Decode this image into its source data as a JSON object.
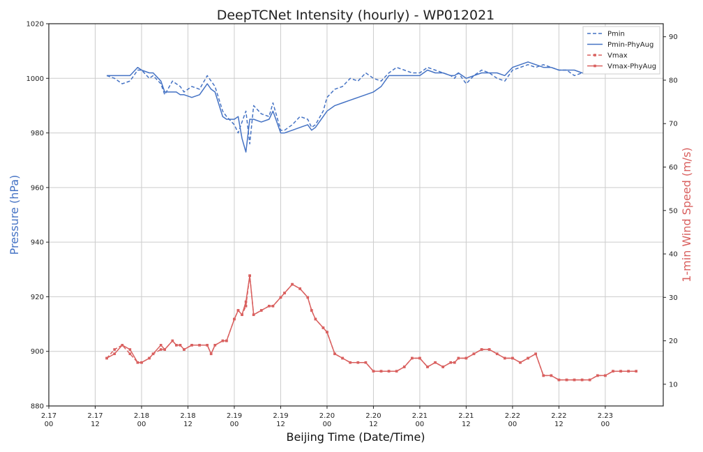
{
  "chart_data": {
    "type": "line",
    "title": "DeepTCNet Intensity (hourly) - WP012021",
    "xlabel": "Beijing Time (Date/Time)",
    "ylabel_left": "Pressure (hPa)",
    "ylabel_right": "1-min Wind Speed (m/s)",
    "colors": {
      "pressure": "#4472c4",
      "wind": "#d9605f"
    },
    "grid": true,
    "legend_position": "top-right",
    "ylim_left": [
      880,
      1020
    ],
    "yticks_left": [
      880,
      900,
      920,
      940,
      960,
      980,
      1000,
      1020
    ],
    "ylim_right": [
      5,
      93
    ],
    "yticks_right": [
      10,
      20,
      30,
      40,
      50,
      60,
      70,
      80,
      90
    ],
    "xlim": [
      0,
      159
    ],
    "xticks": [
      {
        "x": 0,
        "line1": "2.17",
        "line2": "00"
      },
      {
        "x": 12,
        "line1": "2.17",
        "line2": "12"
      },
      {
        "x": 24,
        "line1": "2.18",
        "line2": "00"
      },
      {
        "x": 36,
        "line1": "2.18",
        "line2": "12"
      },
      {
        "x": 48,
        "line1": "2.19",
        "line2": "00"
      },
      {
        "x": 60,
        "line1": "2.19",
        "line2": "12"
      },
      {
        "x": 72,
        "line1": "2.20",
        "line2": "00"
      },
      {
        "x": 84,
        "line1": "2.20",
        "line2": "12"
      },
      {
        "x": 96,
        "line1": "2.21",
        "line2": "00"
      },
      {
        "x": 108,
        "line1": "2.21",
        "line2": "12"
      },
      {
        "x": 120,
        "line1": "2.22",
        "line2": "00"
      },
      {
        "x": 132,
        "line1": "2.22",
        "line2": "12"
      },
      {
        "x": 144,
        "line1": "2.23",
        "line2": "00"
      }
    ],
    "series": [
      {
        "name": "Pmin",
        "axis": "left",
        "style": "dashed",
        "marker": "none",
        "x": [
          15,
          17,
          19,
          21,
          23,
          24,
          26,
          27,
          29,
          30,
          32,
          33,
          34,
          35,
          37,
          39,
          41,
          42,
          43,
          45,
          46,
          48,
          49,
          50,
          51,
          52,
          53,
          55,
          57,
          58,
          60,
          61,
          63,
          65,
          67,
          68,
          69,
          71,
          72,
          74,
          76,
          78,
          80,
          82,
          84,
          86,
          88,
          90,
          92,
          94,
          96,
          98,
          100,
          102,
          104,
          105,
          106,
          108,
          110,
          112,
          114,
          116,
          118,
          120,
          122,
          124,
          126,
          128,
          130,
          132,
          134,
          136,
          138,
          140,
          142,
          144,
          146,
          148,
          150,
          152
        ],
        "y": [
          1001,
          1000,
          998,
          999,
          1003,
          1003,
          1000,
          1001,
          998,
          994,
          999,
          998,
          997,
          995,
          997,
          996,
          1001,
          999,
          997,
          988,
          986,
          983,
          980,
          984,
          988,
          976,
          990,
          987,
          986,
          991,
          981,
          981,
          983,
          986,
          985,
          982,
          983,
          988,
          993,
          996,
          997,
          1000,
          999,
          1002,
          1000,
          999,
          1002,
          1004,
          1003,
          1002,
          1002,
          1004,
          1003,
          1002,
          1001,
          1000,
          1002,
          998,
          1001,
          1003,
          1002,
          1000,
          999,
          1003,
          1004,
          1005,
          1004,
          1005,
          1004,
          1003,
          1003,
          1001,
          1002,
          1003,
          1002,
          1002,
          1003,
          1002,
          1002,
          1002
        ]
      },
      {
        "name": "Pmin-PhyAug",
        "axis": "left",
        "style": "solid",
        "marker": "none",
        "x": [
          15,
          17,
          19,
          21,
          23,
          24,
          26,
          27,
          29,
          30,
          32,
          33,
          34,
          35,
          37,
          39,
          41,
          42,
          43,
          45,
          46,
          48,
          49,
          50,
          51,
          52,
          53,
          55,
          57,
          58,
          60,
          61,
          63,
          65,
          67,
          68,
          69,
          71,
          72,
          74,
          76,
          78,
          80,
          82,
          84,
          86,
          88,
          90,
          92,
          94,
          96,
          98,
          100,
          102,
          104,
          105,
          106,
          108,
          110,
          112,
          114,
          116,
          118,
          120,
          122,
          124,
          126,
          128,
          130,
          132,
          134,
          136,
          138,
          140,
          142,
          144,
          146,
          148,
          150,
          152
        ],
        "y": [
          1001,
          1001,
          1001,
          1001,
          1004,
          1003,
          1002,
          1002,
          999,
          995,
          995,
          995,
          994,
          994,
          993,
          994,
          998,
          996,
          995,
          986,
          985,
          985,
          986,
          978,
          973,
          985,
          985,
          984,
          985,
          988,
          980,
          980,
          981,
          982,
          983,
          981,
          982,
          986,
          988,
          990,
          991,
          992,
          993,
          994,
          995,
          997,
          1001,
          1001,
          1001,
          1001,
          1001,
          1003,
          1002,
          1002,
          1001,
          1001,
          1002,
          1000,
          1001,
          1002,
          1002,
          1002,
          1001,
          1004,
          1005,
          1006,
          1005,
          1004,
          1004,
          1003,
          1003,
          1003,
          1002,
          1002,
          1002,
          1003,
          1003,
          1002,
          1002,
          1002
        ]
      },
      {
        "name": "Vmax",
        "axis": "right",
        "style": "dashed",
        "marker": "square",
        "x": [
          15,
          17,
          19,
          21,
          23,
          24,
          26,
          27,
          29,
          30,
          32,
          33,
          34,
          35,
          37,
          39,
          41,
          42,
          43,
          45,
          46,
          48,
          49,
          50,
          51,
          52,
          53,
          55,
          57,
          58,
          60,
          61,
          63,
          65,
          67,
          68,
          69,
          71,
          72,
          74,
          76,
          78,
          80,
          82,
          84,
          86,
          88,
          90,
          92,
          94,
          96,
          98,
          100,
          102,
          104,
          105,
          106,
          108,
          110,
          112,
          114,
          116,
          118,
          120,
          122,
          124,
          126,
          128,
          130,
          132,
          134,
          136,
          138,
          140,
          142,
          144,
          146,
          148,
          150,
          152
        ],
        "y": [
          16,
          18,
          19,
          17,
          15,
          15,
          16,
          17,
          18,
          18,
          20,
          19,
          19,
          18,
          19,
          19,
          19,
          17,
          19,
          20,
          20,
          25,
          27,
          26,
          28,
          35,
          26,
          27,
          28,
          28,
          30,
          31,
          33,
          32,
          30,
          27,
          25,
          23,
          22,
          17,
          16,
          15,
          15,
          15,
          13,
          13,
          13,
          13,
          14,
          16,
          16,
          14,
          15,
          14,
          15,
          15,
          16,
          16,
          17,
          18,
          18,
          17,
          16,
          16,
          15,
          16,
          17,
          12,
          12,
          11,
          11,
          11,
          11,
          11,
          12,
          12,
          13,
          13,
          13,
          13
        ]
      },
      {
        "name": "Vmax-PhyAug",
        "axis": "right",
        "style": "solid",
        "marker": "square",
        "x": [
          15,
          17,
          19,
          21,
          23,
          24,
          26,
          27,
          29,
          30,
          32,
          33,
          34,
          35,
          37,
          39,
          41,
          42,
          43,
          45,
          46,
          48,
          49,
          50,
          51,
          52,
          53,
          55,
          57,
          58,
          60,
          61,
          63,
          65,
          67,
          68,
          69,
          71,
          72,
          74,
          76,
          78,
          80,
          82,
          84,
          86,
          88,
          90,
          92,
          94,
          96,
          98,
          100,
          102,
          104,
          105,
          106,
          108,
          110,
          112,
          114,
          116,
          118,
          120,
          122,
          124,
          126,
          128,
          130,
          132,
          134,
          136,
          138,
          140,
          142,
          144,
          146,
          148,
          150,
          152
        ],
        "y": [
          16,
          17,
          19,
          18,
          15,
          15,
          16,
          17,
          19,
          18,
          20,
          19,
          19,
          18,
          19,
          19,
          19,
          17,
          19,
          20,
          20,
          25,
          27,
          26,
          29,
          35,
          26,
          27,
          28,
          28,
          30,
          31,
          33,
          32,
          30,
          27,
          25,
          23,
          22,
          17,
          16,
          15,
          15,
          15,
          13,
          13,
          13,
          13,
          14,
          16,
          16,
          14,
          15,
          14,
          15,
          15,
          16,
          16,
          17,
          18,
          18,
          17,
          16,
          16,
          15,
          16,
          17,
          12,
          12,
          11,
          11,
          11,
          11,
          11,
          12,
          12,
          13,
          13,
          13,
          13
        ]
      }
    ]
  }
}
